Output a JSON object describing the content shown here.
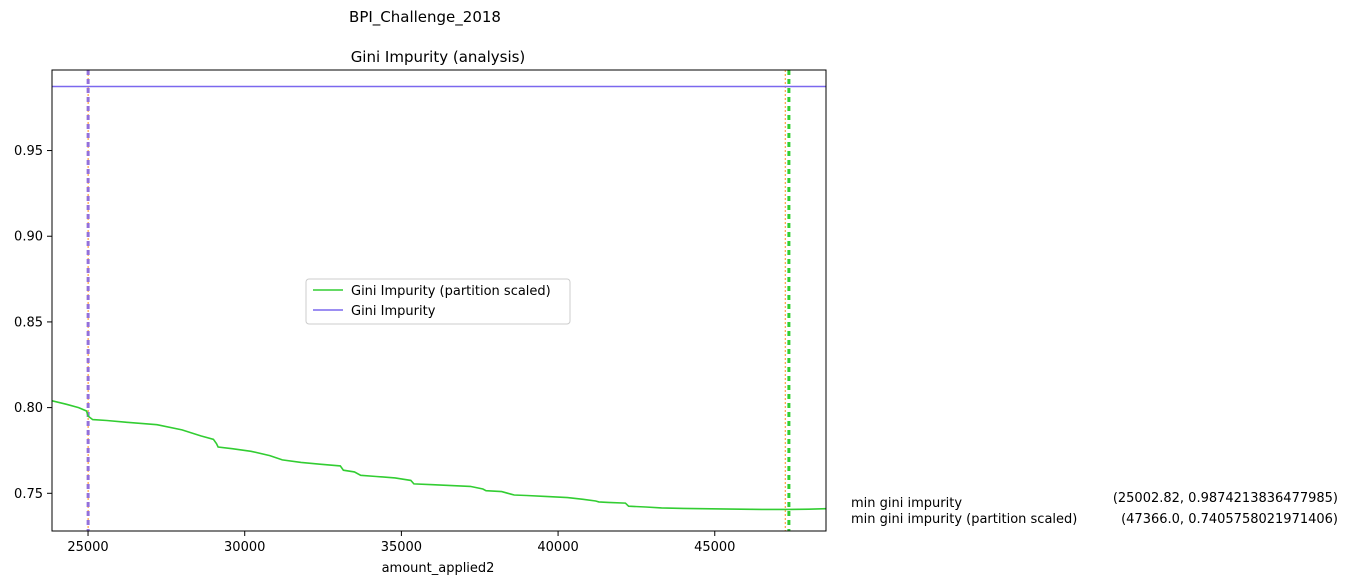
{
  "suptitle": "BPI_Challenge_2018",
  "chart_data": {
    "type": "line",
    "title": "Gini Impurity (analysis)",
    "xlabel": "amount_applied2",
    "ylabel": "",
    "xlim": [
      23850,
      48550
    ],
    "ylim": [
      0.728,
      0.997
    ],
    "xticks": [
      25000,
      30000,
      35000,
      40000,
      45000
    ],
    "yticks": [
      0.75,
      0.8,
      0.85,
      0.9,
      0.95
    ],
    "grid": false,
    "legend_position": "center-left",
    "series": [
      {
        "name": "Gini Impurity (partition scaled)",
        "color": "#32cd32",
        "x": [
          23850,
          24300,
          24700,
          24950,
          25002,
          25150,
          25600,
          26200,
          27200,
          28000,
          28600,
          29000,
          29100,
          29150,
          29600,
          30200,
          30800,
          31200,
          31800,
          32400,
          33050,
          33150,
          33500,
          33700,
          34200,
          34800,
          35300,
          35400,
          36000,
          36600,
          37200,
          37600,
          37700,
          38200,
          38500,
          38600,
          39000,
          39600,
          40300,
          40800,
          41200,
          41300,
          41600,
          42150,
          42250,
          42800,
          43300,
          44000,
          44600,
          45500,
          46500,
          47366,
          48000,
          48550
        ],
        "y": [
          0.804,
          0.802,
          0.8,
          0.798,
          0.795,
          0.793,
          0.7925,
          0.7915,
          0.79,
          0.787,
          0.7835,
          0.7815,
          0.779,
          0.777,
          0.776,
          0.7745,
          0.772,
          0.7695,
          0.768,
          0.767,
          0.766,
          0.7635,
          0.7625,
          0.7605,
          0.7598,
          0.759,
          0.7575,
          0.7555,
          0.755,
          0.7545,
          0.754,
          0.7525,
          0.7515,
          0.751,
          0.7495,
          0.749,
          0.7487,
          0.7482,
          0.7475,
          0.7465,
          0.7455,
          0.745,
          0.7447,
          0.7443,
          0.7425,
          0.742,
          0.7415,
          0.7412,
          0.741,
          0.7408,
          0.7406,
          0.7406,
          0.7407,
          0.741
        ]
      },
      {
        "name": "Gini Impurity",
        "color": "#7b68ee",
        "x": [
          23850,
          48550
        ],
        "y": [
          0.9874,
          0.9874
        ]
      }
    ],
    "vlines": [
      {
        "x": 25002.82,
        "color": "#ff8c1a",
        "style": "dotted",
        "width": 1
      },
      {
        "x": 25002.82,
        "color": "#9370db",
        "style": "dashed",
        "width": 3
      },
      {
        "x": 47250,
        "color": "#ff8c1a",
        "style": "dotted",
        "width": 1
      },
      {
        "x": 47366.0,
        "color": "#32cd32",
        "style": "dashed",
        "width": 3
      }
    ],
    "annotations": [
      {
        "label": "min gini impurity",
        "value": "(25002.82, 0.9874213836477985)"
      },
      {
        "label": "min gini impurity (partition scaled)",
        "value": "(47366.0, 0.7405758021971406)"
      }
    ]
  }
}
